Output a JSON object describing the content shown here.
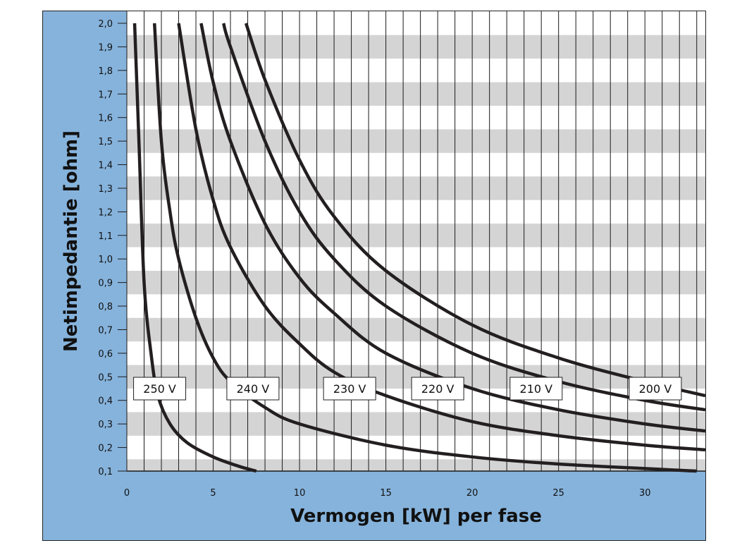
{
  "chart_data": {
    "type": "line",
    "xlabel": "Vermogen [kW] per fase",
    "ylabel": "Netimpedantie [ohm]",
    "xlim": [
      0,
      33.5
    ],
    "ylim": [
      0.1,
      2.0
    ],
    "x_ticks": [
      "0",
      "5",
      "10",
      "15",
      "20",
      "25",
      "30"
    ],
    "y_ticks": [
      "0,1",
      "0,2",
      "0,3",
      "0,4",
      "0,5",
      "0,6",
      "0,7",
      "0,8",
      "0,9",
      "1,0",
      "1,1",
      "1,2",
      "1,3",
      "1,4",
      "1,5",
      "1,6",
      "1,7",
      "1,8",
      "1,9",
      "2,0"
    ],
    "grid": true,
    "series": [
      {
        "name": "250 V",
        "label_x": 1.9,
        "label_y": 0.45,
        "points": [
          [
            0.45,
            2.0
          ],
          [
            0.7,
            1.5
          ],
          [
            1.0,
            0.9
          ],
          [
            1.4,
            0.6
          ],
          [
            1.8,
            0.42
          ],
          [
            2.5,
            0.3
          ],
          [
            3.5,
            0.22
          ],
          [
            5.0,
            0.16
          ],
          [
            6.5,
            0.12
          ],
          [
            7.5,
            0.1
          ]
        ]
      },
      {
        "name": "240 V",
        "label_x": 7.3,
        "label_y": 0.45,
        "points": [
          [
            1.6,
            2.0
          ],
          [
            2.0,
            1.5
          ],
          [
            2.5,
            1.2
          ],
          [
            3.0,
            1.0
          ],
          [
            4.0,
            0.75
          ],
          [
            5.0,
            0.58
          ],
          [
            6.0,
            0.48
          ],
          [
            8.0,
            0.37
          ],
          [
            10.0,
            0.3
          ],
          [
            15.0,
            0.21
          ],
          [
            20.0,
            0.16
          ],
          [
            25.0,
            0.13
          ],
          [
            33.0,
            0.1
          ]
        ]
      },
      {
        "name": "230 V",
        "label_x": 12.9,
        "label_y": 0.45,
        "points": [
          [
            3.0,
            2.0
          ],
          [
            4.0,
            1.55
          ],
          [
            5.0,
            1.25
          ],
          [
            6.0,
            1.05
          ],
          [
            8.0,
            0.8
          ],
          [
            10.0,
            0.64
          ],
          [
            12.0,
            0.52
          ],
          [
            15.0,
            0.42
          ],
          [
            20.0,
            0.31
          ],
          [
            25.0,
            0.25
          ],
          [
            30.0,
            0.21
          ],
          [
            33.5,
            0.19
          ]
        ]
      },
      {
        "name": "220 V",
        "label_x": 18.0,
        "label_y": 0.45,
        "points": [
          [
            4.3,
            2.0
          ],
          [
            5.0,
            1.75
          ],
          [
            6.0,
            1.5
          ],
          [
            8.0,
            1.15
          ],
          [
            10.0,
            0.92
          ],
          [
            12.0,
            0.77
          ],
          [
            15.0,
            0.6
          ],
          [
            20.0,
            0.45
          ],
          [
            25.0,
            0.36
          ],
          [
            30.0,
            0.3
          ],
          [
            33.5,
            0.27
          ]
        ]
      },
      {
        "name": "210 V",
        "label_x": 23.7,
        "label_y": 0.45,
        "points": [
          [
            5.6,
            2.0
          ],
          [
            6.0,
            1.9
          ],
          [
            8.0,
            1.5
          ],
          [
            10.0,
            1.2
          ],
          [
            12.0,
            1.0
          ],
          [
            15.0,
            0.8
          ],
          [
            20.0,
            0.6
          ],
          [
            25.0,
            0.48
          ],
          [
            30.0,
            0.4
          ],
          [
            33.5,
            0.36
          ]
        ]
      },
      {
        "name": "200 V",
        "label_x": 30.6,
        "label_y": 0.45,
        "points": [
          [
            6.9,
            2.0
          ],
          [
            8.0,
            1.76
          ],
          [
            10.0,
            1.42
          ],
          [
            12.0,
            1.18
          ],
          [
            15.0,
            0.95
          ],
          [
            20.0,
            0.72
          ],
          [
            25.0,
            0.58
          ],
          [
            30.0,
            0.48
          ],
          [
            33.5,
            0.42
          ]
        ]
      }
    ]
  }
}
